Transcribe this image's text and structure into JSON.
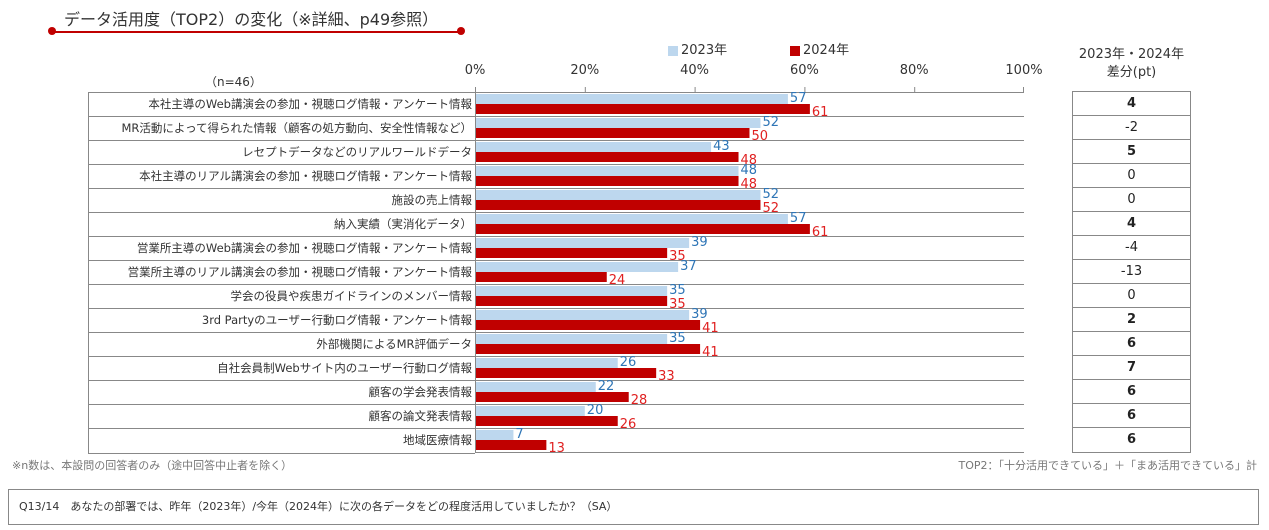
{
  "title": "データ活用度（TOP2）の変化（※詳細、p49参照）",
  "n_label": "（n=46）",
  "chart_data": {
    "type": "bar",
    "orientation": "horizontal",
    "x_ticks": [
      "0%",
      "20%",
      "40%",
      "60%",
      "80%",
      "100%"
    ],
    "xlim": [
      0,
      100
    ],
    "categories": [
      "本社主導のWeb講演会の参加・視聴ログ情報・アンケート情報",
      "MR活動によって得られた情報（顧客の処方動向、安全性情報など）",
      "レセプトデータなどのリアルワールドデータ",
      "本社主導のリアル講演会の参加・視聴ログ情報・アンケート情報",
      "施設の売上情報",
      "納入実績（実消化データ）",
      "営業所主導のWeb講演会の参加・視聴ログ情報・アンケート情報",
      "営業所主導のリアル講演会の参加・視聴ログ情報・アンケート情報",
      "学会の役員や疾患ガイドラインのメンバー情報",
      "3rd Partyのユーザー行動ログ情報・アンケート情報",
      "外部機関によるMR評価データ",
      "自社会員制Webサイト内のユーザー行動ログ情報",
      "顧客の学会発表情報",
      "顧客の論文発表情報",
      "地域医療情報"
    ],
    "series": [
      {
        "name": "2023年",
        "color": "#bdd7ee",
        "label_color": "#2e75b6",
        "values": [
          57,
          52,
          43,
          48,
          52,
          57,
          39,
          37,
          35,
          39,
          35,
          26,
          22,
          20,
          7
        ]
      },
      {
        "name": "2024年",
        "color": "#c00000",
        "label_color": "#e02020",
        "values": [
          61,
          50,
          48,
          48,
          52,
          61,
          35,
          24,
          35,
          41,
          41,
          33,
          28,
          26,
          13
        ]
      }
    ],
    "diff_header": [
      "2023年・2024年",
      "差分(pt)"
    ],
    "diff": [
      "4",
      "-2",
      "5",
      "0",
      "0",
      "4",
      "-4",
      "-13",
      "0",
      "2",
      "6",
      "7",
      "6",
      "6",
      "6"
    ]
  },
  "note_left": "※n数は、本設問の回答者のみ（途中回答中止者を除く）",
  "note_right": "TOP2：「十分活用できている」＋「まあ活用できている」計",
  "question": "Q13/14　あなたの部署では、昨年（2023年）/今年（2024年）に次の各データをどの程度活用していましたか？（SA）"
}
